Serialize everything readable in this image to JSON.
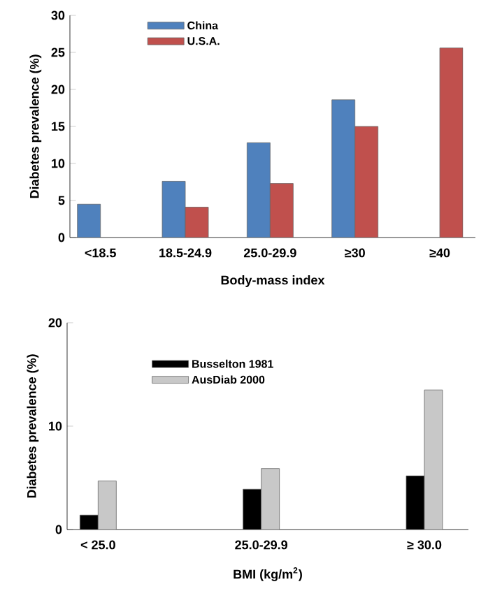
{
  "chart_data": [
    {
      "type": "bar",
      "xlabel": "Body-mass index",
      "ylabel": "Diabetes prevalence (%)",
      "categories": [
        "<18.5",
        "18.5-24.9",
        "25.0-29.9",
        "≥30",
        "≥40"
      ],
      "series": [
        {
          "name": "China",
          "color": "#4f81bd",
          "values": [
            4.5,
            7.6,
            12.8,
            18.6,
            null
          ]
        },
        {
          "name": "U.S.A.",
          "color": "#c0504d",
          "values": [
            null,
            4.1,
            7.3,
            15.0,
            25.6
          ]
        }
      ],
      "ylim": [
        0,
        30
      ],
      "yticks": [
        0,
        5,
        10,
        15,
        20,
        25,
        30
      ],
      "legend": "top"
    },
    {
      "type": "bar",
      "xlabel": "BMI (kg/m$^{2}$)",
      "ylabel": "Diabetes prevalence (%)",
      "categories": [
        "< 25.0",
        "25.0-29.9",
        "≥ 30.0"
      ],
      "series": [
        {
          "name": "Busselton 1981",
          "color": "#000000",
          "values": [
            1.4,
            3.9,
            5.2
          ]
        },
        {
          "name": "AusDiab 2000",
          "color": "#c8c8c8",
          "values": [
            4.7,
            5.9,
            13.5
          ]
        }
      ],
      "ylim": [
        0,
        20
      ],
      "yticks": [
        0,
        10,
        20
      ],
      "legend": "top left"
    }
  ]
}
